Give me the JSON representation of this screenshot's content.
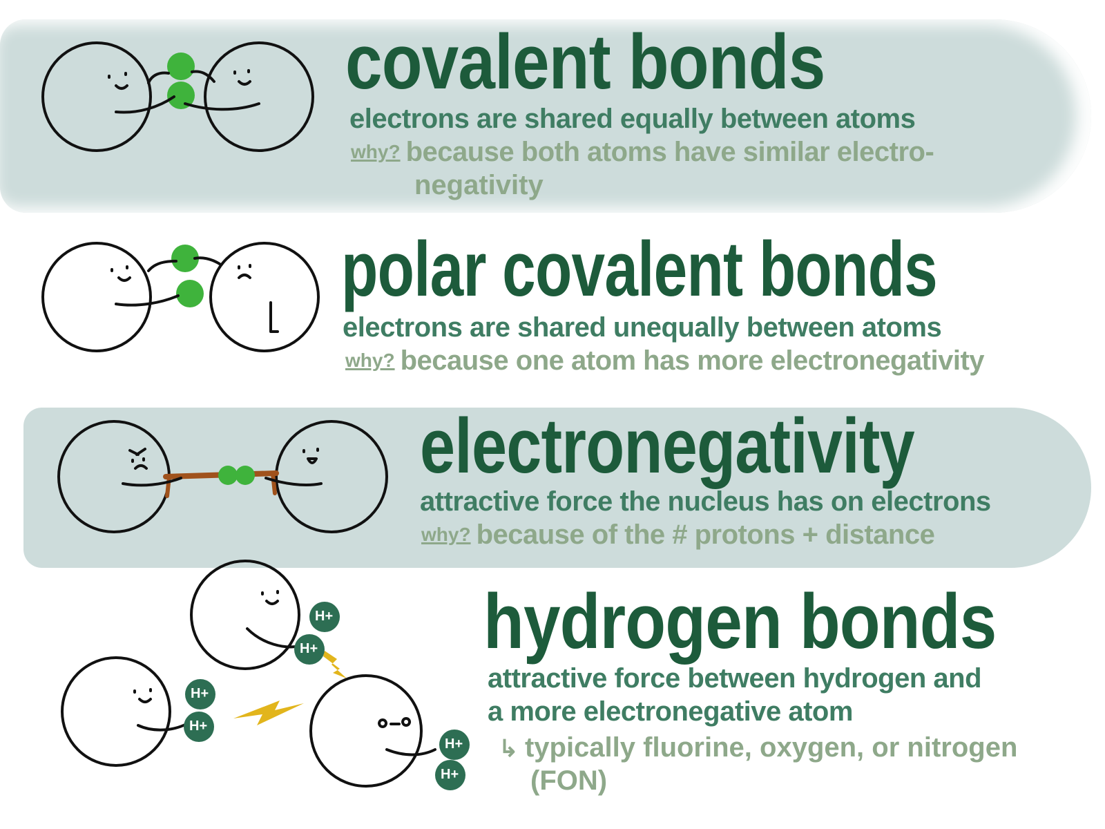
{
  "sections": [
    {
      "title": "covalent bonds",
      "definition": "electrons are shared equally between atoms",
      "why_label": "why?",
      "why_line1": "because both atoms have similar electro-",
      "why_line2": "negativity"
    },
    {
      "title": "polar covalent bonds",
      "definition": "electrons are shared unequally between atoms",
      "why_label": "why?",
      "why_line1": "because one atom has more electronegativity"
    },
    {
      "title": "electronegativity",
      "definition": "attractive force the nucleus has on electrons",
      "why_label": "why?",
      "why_line1": "because of the # protons + distance"
    },
    {
      "title": "hydrogen bonds",
      "definition_line1": "attractive force between hydrogen and",
      "definition_line2": "a more electronegative atom",
      "note_line1": "typically fluorine, oxygen, or nitrogen",
      "note_line2": "(FON)"
    }
  ],
  "hydrogen_label": "H+",
  "colors": {
    "band": "#cddcdb",
    "title": "#1d5b3b",
    "definition": "#3f7d63",
    "why": "#8ea88a",
    "electron": "#3fb33c",
    "hydrogen": "#2d6e53",
    "rope": "#a0521c",
    "lightning": "#e2b51c"
  }
}
